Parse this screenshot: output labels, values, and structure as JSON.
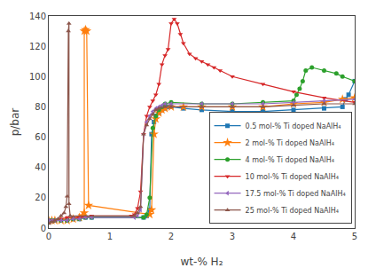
{
  "chart_data": {
    "type": "line",
    "xlabel": "wt-% H₂",
    "ylabel": "p/bar",
    "xlim": [
      0,
      5
    ],
    "ylim": [
      0,
      140
    ],
    "xticks": [
      0,
      1,
      2,
      3,
      4,
      5
    ],
    "yticks": [
      0,
      20,
      40,
      60,
      80,
      100,
      120,
      140
    ],
    "grid": false,
    "legend": "lower right",
    "series": [
      {
        "name": "0.5 mol-% Ti doped NaAlH₄",
        "marker": "square",
        "x": [
          0.0,
          0.05,
          0.1,
          0.2,
          0.3,
          0.4,
          0.5,
          0.6,
          0.7,
          1.55,
          1.6,
          1.65,
          1.68,
          1.72,
          1.75,
          1.8,
          1.85,
          1.9,
          1.95,
          2.0,
          2.2,
          2.5,
          3.0,
          3.5,
          4.0,
          4.5,
          4.8,
          4.85,
          4.9,
          5.0
        ],
        "values": [
          5,
          5,
          5,
          5,
          5,
          6,
          6,
          7,
          7,
          7,
          8,
          12,
          62,
          70,
          74,
          76,
          78,
          79,
          80,
          80,
          79,
          78,
          77,
          77,
          78,
          79,
          80,
          85,
          88,
          97
        ]
      },
      {
        "name": "2 mol-% Ti doped NaAlH₄",
        "marker": "star",
        "x": [
          0.0,
          0.05,
          0.1,
          0.2,
          0.3,
          0.4,
          0.5,
          0.55,
          0.58,
          0.58,
          0.6,
          0.62,
          0.65,
          1.65,
          1.68,
          1.72,
          1.75,
          1.8,
          1.85,
          1.9,
          2.0,
          2.2,
          2.5,
          3.0,
          3.5,
          4.0,
          4.5,
          4.8,
          5.0
        ],
        "values": [
          5,
          5,
          5,
          5,
          5,
          6,
          7,
          8,
          10,
          130,
          131,
          130,
          15,
          9,
          12,
          62,
          72,
          76,
          78,
          79,
          80,
          80,
          80,
          80,
          80,
          82,
          83,
          85,
          86
        ]
      },
      {
        "name": "4 mol-% Ti doped NaAlH₄",
        "marker": "circle",
        "x": [
          0.0,
          0.05,
          0.1,
          0.2,
          0.3,
          0.4,
          0.5,
          0.6,
          0.7,
          1.55,
          1.6,
          1.65,
          1.7,
          1.75,
          1.8,
          1.85,
          1.9,
          2.0,
          2.5,
          3.0,
          3.5,
          4.0,
          4.05,
          4.1,
          4.15,
          4.2,
          4.3,
          4.5,
          4.7,
          4.8,
          5.0
        ],
        "values": [
          5,
          5,
          5,
          5,
          5,
          6,
          6,
          7,
          7,
          7,
          9,
          20,
          66,
          74,
          78,
          80,
          82,
          83,
          82,
          82,
          83,
          84,
          88,
          92,
          97,
          104,
          106,
          104,
          102,
          100,
          97
        ]
      },
      {
        "name": "10 mol-% Ti doped NaAlH₄",
        "marker": "triangle-down",
        "x": [
          0.0,
          0.05,
          0.1,
          0.2,
          0.3,
          0.5,
          0.7,
          1.35,
          1.4,
          1.45,
          1.5,
          1.55,
          1.6,
          1.65,
          1.7,
          1.75,
          1.8,
          1.85,
          1.9,
          1.95,
          2.0,
          2.05,
          2.1,
          2.15,
          2.2,
          2.3,
          2.4,
          2.5,
          2.6,
          2.7,
          2.8,
          3.0,
          3.5,
          4.0,
          4.5,
          5.0
        ],
        "values": [
          5,
          5,
          5,
          6,
          7,
          7,
          8,
          8,
          9,
          13,
          24,
          62,
          74,
          80,
          84,
          88,
          95,
          108,
          114,
          118,
          135,
          138,
          135,
          128,
          122,
          115,
          112,
          110,
          108,
          106,
          104,
          100,
          95,
          90,
          86,
          83
        ]
      },
      {
        "name": "17.5 mol-% Ti doped NaAlH₄",
        "marker": "triangle-left",
        "x": [
          0.0,
          0.05,
          0.1,
          0.2,
          0.3,
          0.4,
          0.5,
          0.6,
          0.7,
          1.4,
          1.45,
          1.5,
          1.55,
          1.6,
          1.65,
          1.7,
          1.75,
          1.8,
          1.85,
          1.9,
          2.0,
          2.5,
          3.0,
          3.5,
          4.0,
          4.5,
          5.0
        ],
        "values": [
          5,
          5,
          5,
          5,
          5,
          6,
          6,
          7,
          7,
          7,
          8,
          12,
          62,
          70,
          74,
          77,
          79,
          80,
          81,
          82,
          82,
          82,
          82,
          82,
          83,
          84,
          85
        ]
      },
      {
        "name": "25 mol-% Ti doped NaAlH₄",
        "marker": "triangle-up",
        "x": [
          0.0,
          0.05,
          0.1,
          0.15,
          0.2,
          0.25,
          0.28,
          0.3,
          0.32,
          0.33,
          0.33,
          0.35,
          1.4,
          1.45,
          1.5,
          1.55,
          1.6,
          1.65,
          1.7,
          1.75,
          1.8,
          1.9,
          2.0,
          2.5,
          3.0,
          3.5,
          4.0,
          4.5,
          5.0
        ],
        "values": [
          3,
          4,
          5,
          6,
          8,
          10,
          14,
          21,
          130,
          135,
          16,
          8,
          8,
          10,
          14,
          62,
          68,
          72,
          75,
          78,
          79,
          80,
          80,
          80,
          80,
          80,
          81,
          82,
          82
        ]
      }
    ]
  }
}
